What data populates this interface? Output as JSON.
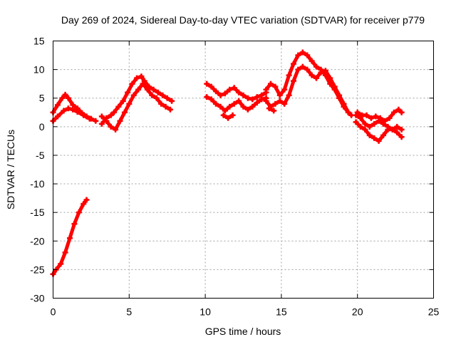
{
  "chart_data": {
    "type": "scatter",
    "title": "Day 269 of 2024, Sidereal Day-to-day VTEC variation (SDTVAR) for receiver p779",
    "xlabel": "GPS time / hours",
    "ylabel": "SDTVAR / TECUs",
    "xlim": [
      0,
      25
    ],
    "ylim": [
      -30,
      15
    ],
    "xticks": [
      0,
      5,
      10,
      15,
      20,
      25
    ],
    "yticks": [
      -30,
      -25,
      -20,
      -15,
      -10,
      -5,
      0,
      5,
      10,
      15
    ],
    "grid": true,
    "marker_color": "#ff0000",
    "series": [
      {
        "name": "track-1",
        "x": [
          0.0,
          0.3,
          0.6,
          0.8,
          1.0,
          1.3,
          1.6,
          1.9,
          2.2,
          2.5,
          2.8
        ],
        "y": [
          2.5,
          3.8,
          5.0,
          5.6,
          5.0,
          3.8,
          3.2,
          2.4,
          1.8,
          1.4,
          1.0
        ]
      },
      {
        "name": "track-2",
        "x": [
          0.0,
          0.3,
          0.7,
          1.0,
          1.3,
          1.6,
          2.0,
          2.4
        ],
        "y": [
          1.0,
          1.8,
          2.8,
          3.2,
          3.0,
          2.6,
          2.0,
          1.4
        ]
      },
      {
        "name": "track-3",
        "x": [
          0.0,
          0.2,
          0.5,
          0.8,
          1.1,
          1.4,
          1.7,
          2.0,
          2.2
        ],
        "y": [
          -25.8,
          -25.0,
          -24.0,
          -22.0,
          -19.5,
          -17.0,
          -15.0,
          -13.5,
          -12.8
        ]
      },
      {
        "name": "track-4",
        "x": [
          3.2,
          3.5,
          3.8,
          4.0,
          4.3,
          4.6,
          4.9,
          5.2,
          5.5,
          5.8,
          6.0,
          6.3,
          6.6,
          6.9,
          7.2,
          7.5,
          7.8
        ],
        "y": [
          0.5,
          1.5,
          2.0,
          2.5,
          3.5,
          4.5,
          6.0,
          7.5,
          8.5,
          8.8,
          8.0,
          7.0,
          6.5,
          6.0,
          5.5,
          5.0,
          4.5
        ]
      },
      {
        "name": "track-5",
        "x": [
          3.2,
          3.5,
          3.8,
          4.1,
          4.4,
          4.7,
          5.0,
          5.3,
          5.6,
          5.9,
          6.2,
          6.5,
          6.8,
          7.1,
          7.4,
          7.7
        ],
        "y": [
          1.8,
          1.0,
          0.0,
          -0.5,
          1.0,
          2.5,
          4.0,
          5.5,
          6.5,
          7.5,
          6.5,
          5.5,
          5.0,
          4.0,
          3.5,
          3.0
        ]
      },
      {
        "name": "track-6",
        "x": [
          10.1,
          10.4,
          10.7,
          11.0,
          11.3,
          11.6,
          11.9,
          12.2,
          12.5,
          12.8,
          13.1,
          13.4,
          13.7,
          14.0
        ],
        "y": [
          7.5,
          7.0,
          6.2,
          5.5,
          5.8,
          6.5,
          6.8,
          6.0,
          5.5,
          5.0,
          4.8,
          5.2,
          5.5,
          6.0
        ]
      },
      {
        "name": "track-7",
        "x": [
          10.1,
          10.4,
          10.7,
          11.0,
          11.3,
          11.6,
          11.9,
          12.2,
          12.5,
          12.8,
          13.1,
          13.4,
          13.7,
          14.0
        ],
        "y": [
          5.2,
          4.8,
          4.0,
          3.5,
          2.8,
          3.5,
          4.0,
          4.5,
          3.5,
          3.0,
          3.5,
          4.2,
          4.8,
          5.0
        ]
      },
      {
        "name": "track-8",
        "x": [
          11.2,
          11.5,
          11.8
        ],
        "y": [
          2.0,
          1.5,
          2.0
        ]
      },
      {
        "name": "track-9",
        "x": [
          14.0,
          14.3,
          14.6,
          14.9,
          15.2,
          15.5,
          15.8,
          16.1,
          16.4,
          16.7,
          17.0,
          17.3,
          17.6,
          17.9,
          18.2,
          18.5,
          18.8,
          19.1,
          19.4,
          19.6
        ],
        "y": [
          6.5,
          7.5,
          7.0,
          5.5,
          6.5,
          9.0,
          11.0,
          12.5,
          13.0,
          12.5,
          11.5,
          10.5,
          10.0,
          9.0,
          7.5,
          6.5,
          5.0,
          3.5,
          2.5,
          2.0
        ]
      },
      {
        "name": "track-10",
        "x": [
          14.0,
          14.3,
          14.6,
          14.9,
          15.2,
          15.5,
          15.8,
          16.1,
          16.4,
          16.7,
          17.0,
          17.3,
          17.6,
          17.9,
          18.2,
          18.5,
          18.8,
          19.1,
          19.4
        ],
        "y": [
          4.5,
          3.5,
          4.0,
          4.5,
          4.0,
          5.5,
          8.0,
          10.0,
          10.5,
          10.0,
          9.0,
          8.5,
          9.5,
          9.8,
          8.5,
          7.0,
          5.5,
          4.0,
          2.5
        ]
      },
      {
        "name": "track-11",
        "x": [
          14.2,
          14.5
        ],
        "y": [
          3.2,
          2.8
        ]
      },
      {
        "name": "track-12",
        "x": [
          19.9,
          20.2,
          20.5,
          20.8,
          21.1,
          21.4,
          21.7,
          22.0,
          22.3,
          22.6,
          22.9
        ],
        "y": [
          0.8,
          0.0,
          -0.5,
          -1.5,
          -2.0,
          -2.5,
          -1.5,
          -0.5,
          -0.5,
          0.0,
          -0.5
        ]
      },
      {
        "name": "track-13",
        "x": [
          19.9,
          20.2,
          20.5,
          20.8,
          21.1,
          21.4,
          21.7,
          22.0,
          22.3,
          22.6,
          22.9
        ],
        "y": [
          2.0,
          1.5,
          0.5,
          0.0,
          0.5,
          1.0,
          0.5,
          0.0,
          -0.5,
          -1.0,
          -1.8
        ]
      },
      {
        "name": "track-14",
        "x": [
          20.0,
          20.3,
          20.6,
          20.9,
          21.2,
          21.5,
          21.8,
          22.1,
          22.4,
          22.7,
          22.9
        ],
        "y": [
          2.5,
          2.0,
          2.0,
          1.5,
          1.8,
          1.5,
          1.0,
          1.5,
          2.5,
          3.0,
          2.5
        ]
      }
    ]
  }
}
